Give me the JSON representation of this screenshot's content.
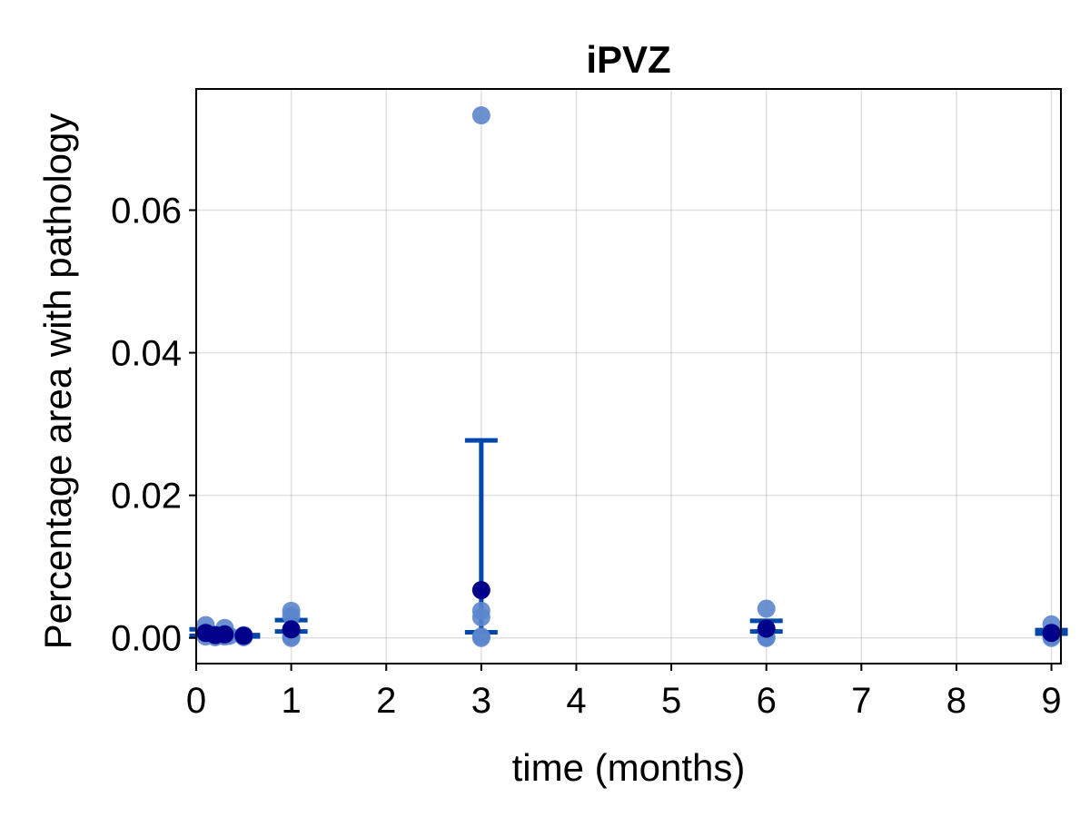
{
  "chart_data": {
    "type": "scatter",
    "title": "iPVZ",
    "xlabel": "time (months)",
    "ylabel": "Percentage area with pathology",
    "xlim": [
      0,
      9.1
    ],
    "ylim": [
      -0.0036,
      0.077
    ],
    "xticks": [
      0,
      1,
      2,
      3,
      4,
      5,
      6,
      7,
      8,
      9
    ],
    "xtick_labels": [
      "0",
      "1",
      "2",
      "3",
      "4",
      "5",
      "6",
      "7",
      "8",
      "9"
    ],
    "yticks": [
      0.0,
      0.02,
      0.04,
      0.06
    ],
    "ytick_labels": [
      "0.00",
      "0.02",
      "0.04",
      "0.06"
    ],
    "grid": true,
    "colors": {
      "points": "#5b85cc",
      "mean": "#00008b",
      "errorbar": "#0047ab"
    },
    "points": [
      {
        "x": 0.1,
        "y": 0.0018
      },
      {
        "x": 0.1,
        "y": 0.0008
      },
      {
        "x": 0.1,
        "y": 0.0002
      },
      {
        "x": 0.15,
        "y": 0.0005
      },
      {
        "x": 0.2,
        "y": 0.0004
      },
      {
        "x": 0.2,
        "y": 0.0001
      },
      {
        "x": 0.25,
        "y": 0.0003
      },
      {
        "x": 0.3,
        "y": 0.0014
      },
      {
        "x": 0.3,
        "y": 0.0002
      },
      {
        "x": 0.35,
        "y": 0.0003
      },
      {
        "x": 0.5,
        "y": 0.0004
      },
      {
        "x": 0.5,
        "y": 0.0001
      },
      {
        "x": 1,
        "y": 0.0038
      },
      {
        "x": 1,
        "y": 0.0031
      },
      {
        "x": 1,
        "y": 0.0002
      },
      {
        "x": 1,
        "y": 0.0
      },
      {
        "x": 3,
        "y": 0.0733
      },
      {
        "x": 3,
        "y": 0.0038
      },
      {
        "x": 3,
        "y": 0.0029
      },
      {
        "x": 3,
        "y": 0.0002
      },
      {
        "x": 3,
        "y": 0.0
      },
      {
        "x": 6,
        "y": 0.0041
      },
      {
        "x": 6,
        "y": 0.0012
      },
      {
        "x": 6,
        "y": 0.0001
      },
      {
        "x": 6,
        "y": 0.0
      },
      {
        "x": 9,
        "y": 0.0019
      },
      {
        "x": 9,
        "y": 0.0008
      },
      {
        "x": 9,
        "y": 0.0002
      },
      {
        "x": 9,
        "y": 0.0
      }
    ],
    "means": [
      {
        "x": 0.1,
        "y": 0.0007
      },
      {
        "x": 0.2,
        "y": 0.0004
      },
      {
        "x": 0.3,
        "y": 0.0005
      },
      {
        "x": 0.5,
        "y": 0.0003
      },
      {
        "x": 1,
        "y": 0.0012
      },
      {
        "x": 3,
        "y": 0.0067
      },
      {
        "x": 6,
        "y": 0.0013
      },
      {
        "x": 9,
        "y": 0.0007
      }
    ],
    "errorbars": [
      {
        "x": 0.1,
        "low": 0.0003,
        "high": 0.0012
      },
      {
        "x": 0.2,
        "low": 0.0002,
        "high": 0.0006
      },
      {
        "x": 0.3,
        "low": 0.0003,
        "high": 0.0008
      },
      {
        "x": 0.5,
        "low": 0.0002,
        "high": 0.0004
      },
      {
        "x": 1,
        "low": 0.0009,
        "high": 0.0025
      },
      {
        "x": 3,
        "low": 0.0008,
        "high": 0.0277
      },
      {
        "x": 6,
        "low": 0.0009,
        "high": 0.0024
      },
      {
        "x": 9,
        "low": 0.0006,
        "high": 0.0011
      }
    ]
  }
}
